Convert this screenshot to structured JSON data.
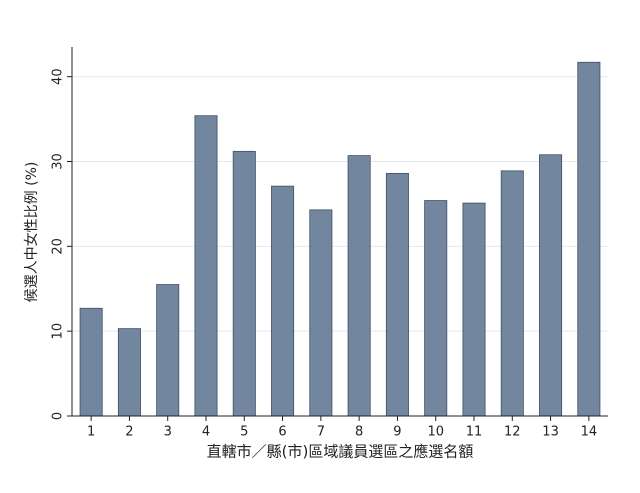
{
  "chart_data": {
    "type": "bar",
    "x_label": "直轄市／縣(市)區域議員選區之應選名額",
    "y_label": "候選人中女性比例 (%)",
    "categories": [
      "1",
      "2",
      "3",
      "4",
      "5",
      "6",
      "7",
      "8",
      "9",
      "10",
      "11",
      "12",
      "13",
      "14"
    ],
    "values": [
      12.7,
      10.3,
      15.5,
      35.4,
      31.2,
      27.1,
      24.3,
      30.7,
      28.6,
      25.4,
      25.1,
      28.9,
      30.8,
      41.7
    ],
    "color": "#7386a0",
    "ylim": [
      0,
      43.5
    ],
    "yticks": [
      0,
      10,
      20,
      30,
      40
    ],
    "grid": true
  }
}
